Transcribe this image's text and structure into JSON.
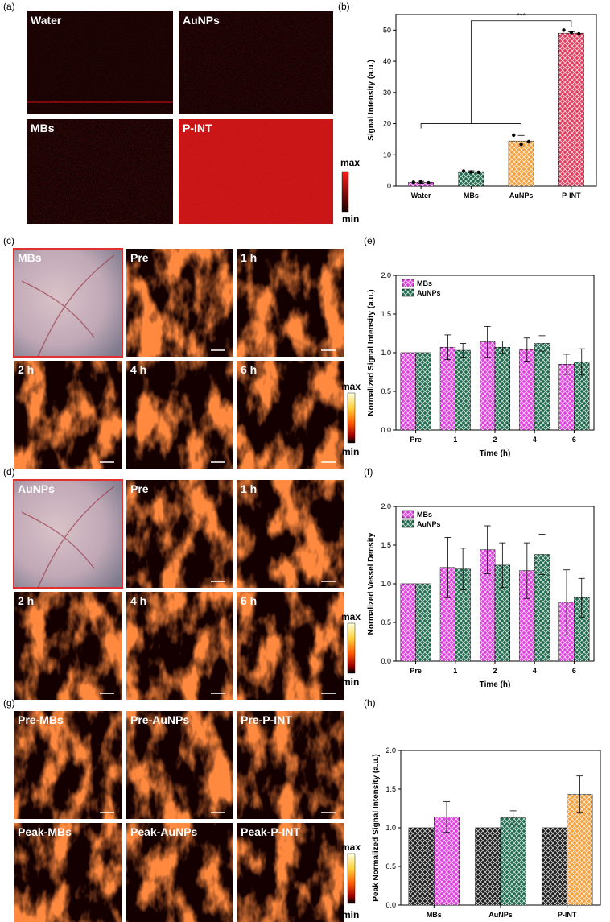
{
  "panel_labels": {
    "a": "(a)",
    "b": "(b)",
    "c": "(c)",
    "d": "(d)",
    "e": "(e)",
    "f": "(f)",
    "g": "(g)",
    "h": "(h)"
  },
  "panel_a": {
    "images": [
      {
        "label": "Water",
        "brightness": 0.02
      },
      {
        "label": "AuNPs",
        "brightness": 0.07
      },
      {
        "label": "MBs",
        "brightness": 0.1
      },
      {
        "label": "P-INT",
        "brightness": 0.8
      }
    ],
    "colorbar": {
      "max": "max",
      "min": "min",
      "colors": [
        "#ff1a1a",
        "#1a0000"
      ]
    }
  },
  "panel_c": {
    "images": [
      {
        "label": "MBs",
        "type": "photo"
      },
      {
        "label": "Pre",
        "type": "vessel"
      },
      {
        "label": "1 h",
        "type": "vessel"
      },
      {
        "label": "2 h",
        "type": "vessel"
      },
      {
        "label": "4 h",
        "type": "vessel"
      },
      {
        "label": "6 h",
        "type": "vessel"
      }
    ],
    "colorbar": {
      "max": "max",
      "min": "min"
    }
  },
  "panel_d": {
    "images": [
      {
        "label": "AuNPs",
        "type": "photo"
      },
      {
        "label": "Pre",
        "type": "vessel"
      },
      {
        "label": "1 h",
        "type": "vessel"
      },
      {
        "label": "2 h",
        "type": "vessel"
      },
      {
        "label": "4 h",
        "type": "vessel"
      },
      {
        "label": "6 h",
        "type": "vessel"
      }
    ],
    "colorbar": {
      "max": "max",
      "min": "min"
    }
  },
  "panel_g": {
    "images": [
      {
        "label": "Pre-MBs",
        "type": "vessel"
      },
      {
        "label": "Pre-AuNPs",
        "type": "vessel"
      },
      {
        "label": "Pre-P-INT",
        "type": "vessel"
      },
      {
        "label": "Peak-MBs",
        "type": "vessel"
      },
      {
        "label": "Peak-AuNPs",
        "type": "vessel"
      },
      {
        "label": "Peak-P-INT",
        "type": "vessel"
      }
    ],
    "colorbar": {
      "max": "max",
      "min": "min"
    }
  },
  "colors": {
    "MBs": "#e040e0",
    "AuNPs": "#1f6b4e",
    "Water": "#e040e0",
    "P-INT": "#e23c5c",
    "Orange": "#f5a03c",
    "Black": "#1a1a1a"
  },
  "chart_data": [
    {
      "id": "b",
      "type": "bar",
      "ylabel": "Signal Intensity (a.u.)",
      "xlabel": "",
      "ylim": [
        0,
        55
      ],
      "yticks": [
        0,
        10,
        20,
        30,
        40,
        50
      ],
      "categories": [
        "Water",
        "MBs",
        "AuNPs",
        "P-INT"
      ],
      "values": [
        1.2,
        4.6,
        14.4,
        49.0
      ],
      "errors": [
        0.3,
        0.3,
        1.8,
        0.5
      ],
      "bar_colors": [
        "#e040e0",
        "#1f6b4e",
        "#f5a03c",
        "#e23c5c"
      ],
      "points": [
        [
          1.2,
          1.4,
          1.0
        ],
        [
          4.8,
          4.5,
          4.4
        ],
        [
          16.3,
          13.4,
          14.2
        ],
        [
          50.0,
          49.3,
          48.8
        ]
      ],
      "annotation": "***"
    },
    {
      "id": "e",
      "type": "bar",
      "ylabel": "Normalized Signal Intensity (a.u.)",
      "xlabel": "Time (h)",
      "ylim": [
        0,
        2.0
      ],
      "yticks": [
        0.0,
        0.5,
        1.0,
        1.5,
        2.0
      ],
      "categories": [
        "Pre",
        "1",
        "2",
        "4",
        "6"
      ],
      "series": [
        {
          "name": "MBs",
          "values": [
            1.0,
            1.07,
            1.14,
            1.04,
            0.85
          ],
          "errors": [
            0,
            0.16,
            0.2,
            0.15,
            0.13
          ],
          "color": "#e040e0"
        },
        {
          "name": "AuNPs",
          "values": [
            1.0,
            1.03,
            1.07,
            1.12,
            0.88
          ],
          "errors": [
            0,
            0.09,
            0.08,
            0.1,
            0.17
          ],
          "color": "#1f6b4e"
        }
      ],
      "legend": "top-left"
    },
    {
      "id": "f",
      "type": "bar",
      "ylabel": "Normalized Vessel Density",
      "xlabel": "Time (h)",
      "ylim": [
        0,
        2.0
      ],
      "yticks": [
        0.0,
        0.5,
        1.0,
        1.5,
        2.0
      ],
      "categories": [
        "Pre",
        "1",
        "2",
        "4",
        "6"
      ],
      "series": [
        {
          "name": "MBs",
          "values": [
            1.0,
            1.21,
            1.44,
            1.17,
            0.76
          ],
          "errors": [
            0,
            0.39,
            0.31,
            0.36,
            0.42
          ],
          "color": "#e040e0"
        },
        {
          "name": "AuNPs",
          "values": [
            1.0,
            1.19,
            1.24,
            1.38,
            0.82
          ],
          "errors": [
            0,
            0.27,
            0.29,
            0.26,
            0.25
          ],
          "color": "#1f6b4e"
        }
      ],
      "legend": "top-left"
    },
    {
      "id": "h",
      "type": "bar",
      "ylabel": "Peak Normalized Signal Intensity (a.u.)",
      "xlabel": "",
      "ylim": [
        0,
        2.0
      ],
      "yticks": [
        0.0,
        0.5,
        1.0,
        1.5,
        2.0
      ],
      "categories": [
        "MBs",
        "AuNPs",
        "P-INT"
      ],
      "series": [
        {
          "values": [
            1.0,
            1.0,
            1.0
          ],
          "errors": [
            0,
            0,
            0
          ],
          "colors": [
            "#1a1a1a",
            "#1a1a1a",
            "#1a1a1a"
          ]
        },
        {
          "values": [
            1.14,
            1.13,
            1.43
          ],
          "errors": [
            0.2,
            0.09,
            0.24
          ],
          "colors": [
            "#e040e0",
            "#1f6b4e",
            "#f5a03c"
          ]
        }
      ]
    }
  ]
}
